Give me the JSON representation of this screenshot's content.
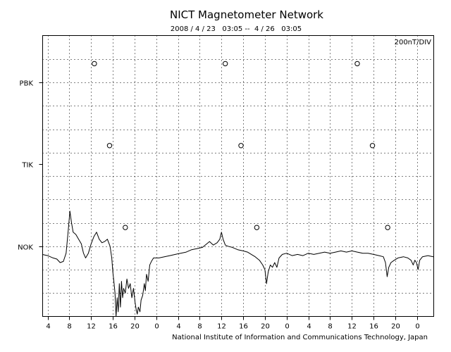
{
  "chart_data": {
    "type": "line",
    "title": "NICT Magnetometer Network",
    "subtitle": "2008 / 4 / 23   03:05 --  4 / 26   03:05",
    "scale_label": "200nT/DIV",
    "credit": "National Institute of Information and Communications Technology, Japan",
    "x_tick_labels": [
      "4",
      "8",
      "12",
      "16",
      "20",
      "0",
      "4",
      "8",
      "12",
      "16",
      "20",
      "0",
      "4",
      "8",
      "12",
      "16",
      "20",
      "0"
    ],
    "x_tick_hours": [
      4,
      8,
      12,
      16,
      20,
      24,
      28,
      32,
      36,
      40,
      44,
      48,
      52,
      56,
      60,
      64,
      68,
      72
    ],
    "x_range_hours": [
      3.08,
      75.08
    ],
    "y_range_div": [
      0,
      12
    ],
    "grid": true,
    "stations": [
      {
        "name": "PBK",
        "baseline_div": 10,
        "open_circle_hours": [
          12.6,
          36.7,
          61.0
        ],
        "open_circle_div": 10.8,
        "trace": []
      },
      {
        "name": "TIK",
        "baseline_div": 6.5,
        "open_circle_hours": [
          15.4,
          39.6,
          63.8
        ],
        "open_circle_div": 7.3,
        "trace": []
      },
      {
        "name": "NOK",
        "baseline_div": 3,
        "open_circle_hours": [
          18.3,
          42.5,
          66.6
        ],
        "open_circle_div": 3.8,
        "trace": [
          [
            3.0,
            2.65
          ],
          [
            4.0,
            2.6
          ],
          [
            5.0,
            2.5
          ],
          [
            5.7,
            2.45
          ],
          [
            6.3,
            2.3
          ],
          [
            6.9,
            2.35
          ],
          [
            7.4,
            2.7
          ],
          [
            7.8,
            3.7
          ],
          [
            8.1,
            4.5
          ],
          [
            8.4,
            4.0
          ],
          [
            8.7,
            3.6
          ],
          [
            9.2,
            3.5
          ],
          [
            9.7,
            3.3
          ],
          [
            10.2,
            3.1
          ],
          [
            10.6,
            2.7
          ],
          [
            11.0,
            2.5
          ],
          [
            11.5,
            2.7
          ],
          [
            12.0,
            3.1
          ],
          [
            12.5,
            3.4
          ],
          [
            13.0,
            3.6
          ],
          [
            13.5,
            3.3
          ],
          [
            14.0,
            3.15
          ],
          [
            14.5,
            3.2
          ],
          [
            15.0,
            3.3
          ],
          [
            15.5,
            3.0
          ],
          [
            15.8,
            2.5
          ],
          [
            16.0,
            1.9
          ],
          [
            16.2,
            1.5
          ],
          [
            16.4,
            1.0
          ],
          [
            16.6,
            0.0
          ],
          [
            16.8,
            0.8
          ],
          [
            17.0,
            0.2
          ],
          [
            17.2,
            1.4
          ],
          [
            17.4,
            0.4
          ],
          [
            17.6,
            1.5
          ],
          [
            17.8,
            0.8
          ],
          [
            18.0,
            1.2
          ],
          [
            18.3,
            1.0
          ],
          [
            18.6,
            1.6
          ],
          [
            18.9,
            1.2
          ],
          [
            19.2,
            1.4
          ],
          [
            19.5,
            0.8
          ],
          [
            19.8,
            1.2
          ],
          [
            20.1,
            0.6
          ],
          [
            20.3,
            0.3
          ],
          [
            20.5,
            0.1
          ],
          [
            20.7,
            0.4
          ],
          [
            21.0,
            0.2
          ],
          [
            21.2,
            0.7
          ],
          [
            21.5,
            0.9
          ],
          [
            21.8,
            1.4
          ],
          [
            22.0,
            1.1
          ],
          [
            22.2,
            1.8
          ],
          [
            22.5,
            1.5
          ],
          [
            22.8,
            2.2
          ],
          [
            23.1,
            2.35
          ],
          [
            23.5,
            2.5
          ],
          [
            24.5,
            2.5
          ],
          [
            25.5,
            2.55
          ],
          [
            26.5,
            2.6
          ],
          [
            27.5,
            2.65
          ],
          [
            28.5,
            2.7
          ],
          [
            29.5,
            2.75
          ],
          [
            30.5,
            2.85
          ],
          [
            31.5,
            2.9
          ],
          [
            32.5,
            2.95
          ],
          [
            33.3,
            3.1
          ],
          [
            33.8,
            3.2
          ],
          [
            34.5,
            3.05
          ],
          [
            35.2,
            3.15
          ],
          [
            35.7,
            3.3
          ],
          [
            36.0,
            3.6
          ],
          [
            36.3,
            3.3
          ],
          [
            36.7,
            3.05
          ],
          [
            37.2,
            3.0
          ],
          [
            38.0,
            2.95
          ],
          [
            39.0,
            2.85
          ],
          [
            40.0,
            2.8
          ],
          [
            40.8,
            2.75
          ],
          [
            41.5,
            2.65
          ],
          [
            42.2,
            2.55
          ],
          [
            43.0,
            2.4
          ],
          [
            43.6,
            2.2
          ],
          [
            44.0,
            2.0
          ],
          [
            44.3,
            1.4
          ],
          [
            44.6,
            1.9
          ],
          [
            45.0,
            2.2
          ],
          [
            45.4,
            2.1
          ],
          [
            45.8,
            2.3
          ],
          [
            46.2,
            2.1
          ],
          [
            46.6,
            2.5
          ],
          [
            47.2,
            2.65
          ],
          [
            48.0,
            2.7
          ],
          [
            49.0,
            2.6
          ],
          [
            50.0,
            2.65
          ],
          [
            51.0,
            2.6
          ],
          [
            52.0,
            2.7
          ],
          [
            53.0,
            2.65
          ],
          [
            54.0,
            2.7
          ],
          [
            55.0,
            2.75
          ],
          [
            56.0,
            2.7
          ],
          [
            57.0,
            2.75
          ],
          [
            58.0,
            2.8
          ],
          [
            59.0,
            2.75
          ],
          [
            60.0,
            2.8
          ],
          [
            61.0,
            2.75
          ],
          [
            62.0,
            2.7
          ],
          [
            63.0,
            2.7
          ],
          [
            64.0,
            2.65
          ],
          [
            65.0,
            2.6
          ],
          [
            65.8,
            2.55
          ],
          [
            66.2,
            2.3
          ],
          [
            66.5,
            1.7
          ],
          [
            66.8,
            2.1
          ],
          [
            67.2,
            2.3
          ],
          [
            67.8,
            2.4
          ],
          [
            68.5,
            2.5
          ],
          [
            69.5,
            2.55
          ],
          [
            70.3,
            2.5
          ],
          [
            70.9,
            2.4
          ],
          [
            71.3,
            2.2
          ],
          [
            71.6,
            2.4
          ],
          [
            71.9,
            2.3
          ],
          [
            72.2,
            2.0
          ],
          [
            72.5,
            2.4
          ],
          [
            73.0,
            2.55
          ],
          [
            74.0,
            2.6
          ],
          [
            75.0,
            2.55
          ]
        ]
      }
    ]
  }
}
